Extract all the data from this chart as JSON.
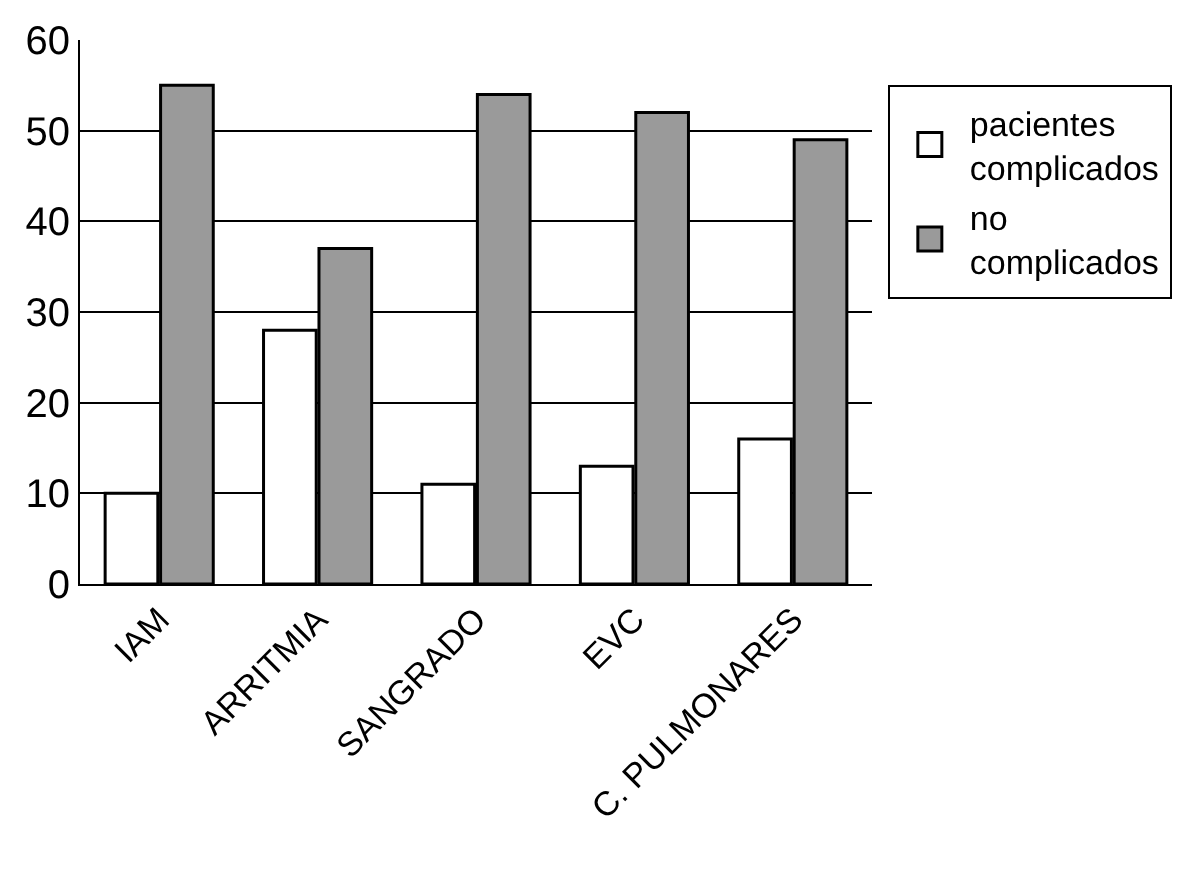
{
  "chart_data": {
    "type": "bar",
    "categories": [
      "IAM",
      "ARRITMIA",
      "SANGRADO",
      "EVC",
      "C. PULMONARES"
    ],
    "series": [
      {
        "name": "pacientes complicados",
        "color": "#ffffff",
        "values": [
          10,
          28,
          11,
          13,
          16
        ]
      },
      {
        "name": "no complicados",
        "color": "#9a9a9a",
        "values": [
          55,
          37,
          54,
          52,
          49
        ]
      }
    ],
    "ylim": [
      0,
      60
    ],
    "yticks": [
      0,
      10,
      20,
      30,
      40,
      50,
      60
    ],
    "grid": "y",
    "legend": "right"
  }
}
